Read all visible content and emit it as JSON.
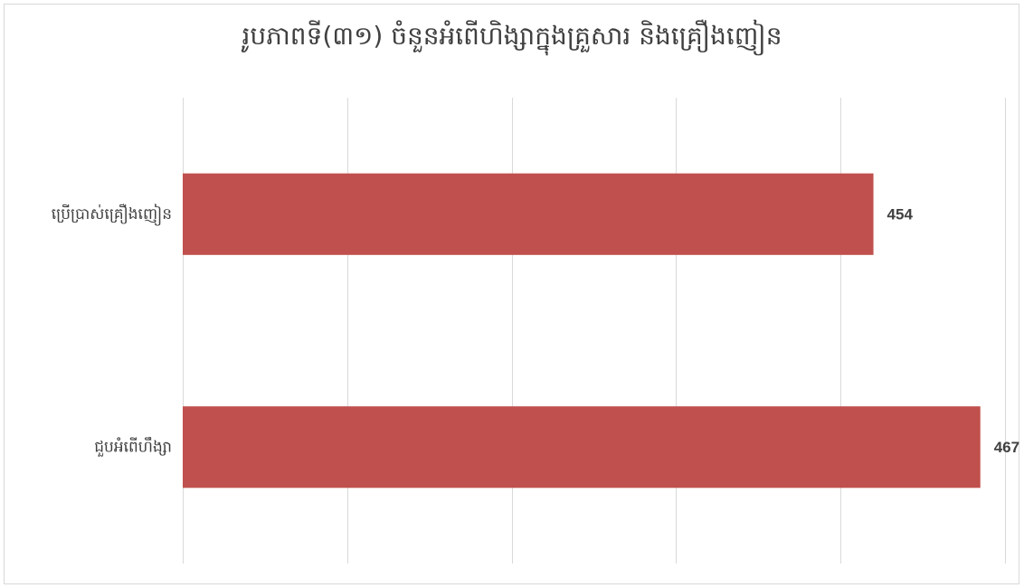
{
  "chart_data": {
    "type": "bar",
    "orientation": "horizontal",
    "title": "រូបភាពទី(៣១) ចំនួនអំពើហិង្សាក្នុងគ្រួសារ និងគ្រឿងញៀន",
    "categories": [
      "ប្រើប្រាស់គ្រឿងញៀន",
      "ជួបអំពើហឹង្សា"
    ],
    "values": [
      454,
      467
    ],
    "xlim": [
      370,
      470
    ],
    "tick_step": 20,
    "tick_labels_visible": false,
    "grid": true,
    "legend": "none",
    "bar_color": "#C0504D",
    "grid_color": "#d9d9d9",
    "text_color": "#404040"
  }
}
